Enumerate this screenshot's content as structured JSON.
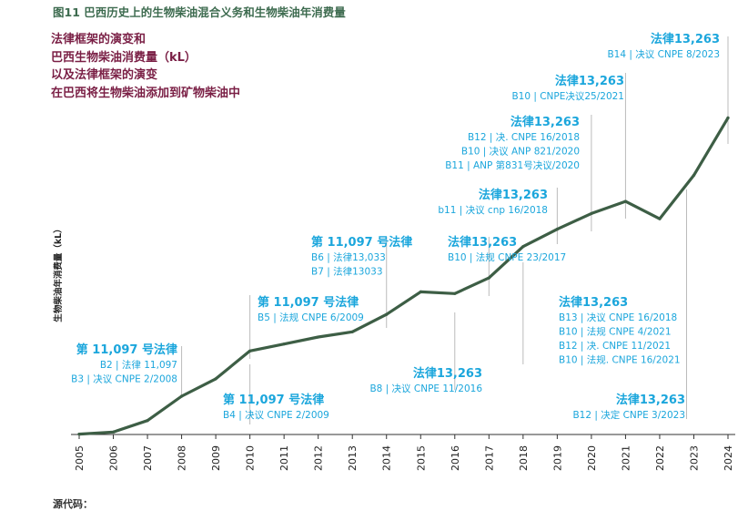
{
  "figure_title": "图11 巴西历史上的生物柴油混合义务和生物柴油年消费量",
  "subtitle_lines": [
    "法律框架的演变和",
    "巴西生物柴油消费量（kL）",
    "以及法律框架的演变",
    "在巴西将生物柴油添加到矿物柴油中"
  ],
  "source_label": "源代码：",
  "colors": {
    "line": "#3d5e45",
    "annotation": "#1ba6dc",
    "title": "#3d6b4f",
    "subtitle": "#7a1f45",
    "leader": "#bbbbbb"
  },
  "chart_data": {
    "type": "line",
    "title": "图11 巴西历史上的生物柴油混合义务和生物柴油年消费量",
    "xlabel": "",
    "ylabel": "生物柴油年消费量（kL）",
    "categories": [
      "2005",
      "2006",
      "2007",
      "2008",
      "2009",
      "2010",
      "2011",
      "2012",
      "2013",
      "2014",
      "2015",
      "2016",
      "2017",
      "2018",
      "2019",
      "2020",
      "2021",
      "2022",
      "2023",
      "2024"
    ],
    "series": [
      {
        "name": "生物柴油年消费量（kL）",
        "values": [
          0.01,
          0.07,
          0.4,
          1.1,
          1.6,
          2.4,
          2.6,
          2.8,
          2.95,
          3.45,
          4.1,
          4.05,
          4.5,
          5.4,
          5.9,
          6.35,
          6.7,
          6.2,
          7.45,
          9.1
        ]
      }
    ],
    "ylim": [
      0,
      10
    ],
    "grid": false,
    "annotations": [
      {
        "year": "2008",
        "position": "above",
        "heading": "第 11,097 号法律",
        "lines": [
          "B2 | 法律 11,097",
          "B3 | 决议 CNPE 2/2008"
        ]
      },
      {
        "year": "2010",
        "position": "below",
        "heading": "第 11,097 号法律",
        "lines": [
          "B4 | 决议 CNPE 2/2009"
        ]
      },
      {
        "year": "2010",
        "position": "above",
        "heading": "第 11,097 号法律",
        "lines": [
          "B5 | 法规 CNPE 6/2009"
        ]
      },
      {
        "year": "2014",
        "position": "above",
        "heading": "第 11,097 号法律",
        "lines": [
          "B6 | 法律13,033",
          "B7 | 法律13033"
        ]
      },
      {
        "year": "2016",
        "position": "below",
        "heading": "法律13,263",
        "lines": [
          "B8 | 决议 CNPE 11/2016"
        ]
      },
      {
        "year": "2017",
        "position": "above",
        "heading": "法律13,263",
        "lines": [
          "B10 | 法规 CNPE 23/2017"
        ]
      },
      {
        "year": "2019",
        "position": "above",
        "heading": "法律13,263",
        "lines": [
          "b11 | 决议 cnp 16/2018"
        ]
      },
      {
        "year": "2020",
        "position": "above",
        "heading": "法律13,263",
        "lines": [
          "B12 | 决. CNPE 16/2018",
          "B10 | 决议 ANP 821/2020",
          "B11 | ANP 第831号决议/2020"
        ]
      },
      {
        "year": "2018",
        "position": "below",
        "heading": "法律13,263",
        "lines": [
          "B13 | 决议 CNPE 16/2018",
          "B10 | 法规 CNPE 4/2021",
          "B12 | 决. CNPE 11/2021",
          "B10 | 法规. CNPE 16/2021"
        ]
      },
      {
        "year": "2021",
        "position": "above",
        "heading": "法律13,263",
        "lines": [
          "B10 | CNPE决议25/2021"
        ]
      },
      {
        "year": "2023",
        "position": "below",
        "heading": "法律13,263",
        "lines": [
          "B12 | 决定 CNPE 3/2023"
        ]
      },
      {
        "year": "2024",
        "position": "above",
        "heading": "法律13,263",
        "lines": [
          "B14 | 决议 CNPE 8/2023"
        ]
      }
    ]
  }
}
